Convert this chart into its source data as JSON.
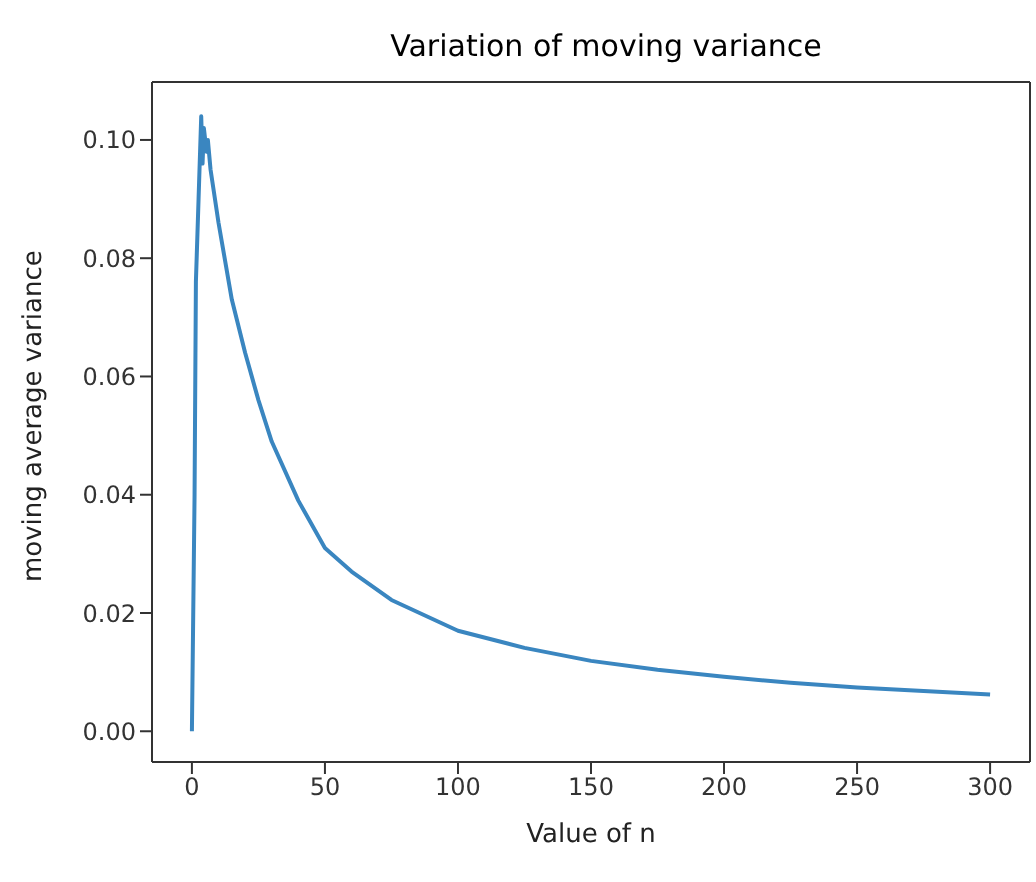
{
  "chart_data": {
    "type": "line",
    "title": "Variation of moving variance",
    "xlabel": "Value of n",
    "ylabel": "moving average variance",
    "x": [
      0,
      1,
      1.5,
      2.5,
      3.5,
      4,
      4.5,
      5.5,
      6,
      7,
      8,
      10,
      15,
      20,
      25,
      30,
      40,
      50,
      60,
      75,
      100,
      125,
      150,
      175,
      200,
      225,
      250,
      275,
      300
    ],
    "series": [
      {
        "color": "#3a86c0",
        "values": [
          0,
          0.04,
          0.076,
          0.09,
          0.104,
          0.096,
          0.102,
          0.098,
          0.1,
          0.095,
          0.092,
          0.086,
          0.073,
          0.064,
          0.056,
          0.049,
          0.039,
          0.031,
          0.027,
          0.0222,
          0.017,
          0.0141,
          0.0119,
          0.0104,
          0.0092,
          0.0082,
          0.0074,
          0.0068,
          0.0062
        ]
      }
    ],
    "xlim": [
      -15,
      315
    ],
    "xticks": [
      0,
      50,
      100,
      150,
      200,
      250,
      300
    ],
    "ylim": [
      -0.0052,
      0.1098
    ],
    "yticks": [
      {
        "value": 0,
        "label": "0.00"
      },
      {
        "value": 0.02,
        "label": "0.02"
      },
      {
        "value": 0.04,
        "label": "0.04"
      },
      {
        "value": 0.06,
        "label": "0.06"
      },
      {
        "value": 0.08,
        "label": "0.08"
      },
      {
        "value": 0.1,
        "label": "0.10"
      }
    ],
    "grid": false,
    "legend": false,
    "marker": "none",
    "line_style": "solid"
  }
}
